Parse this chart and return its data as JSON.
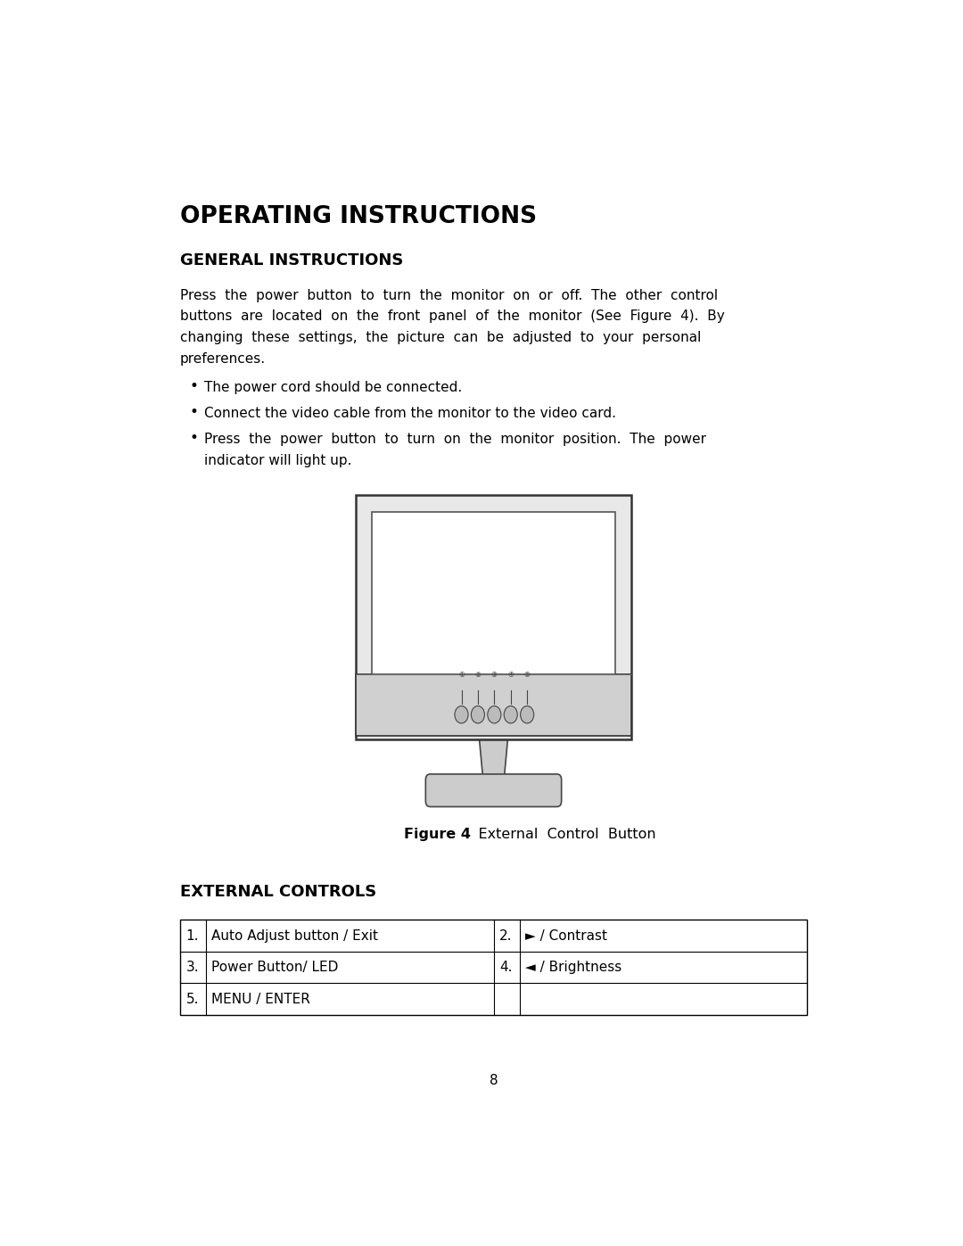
{
  "bg_color": "#ffffff",
  "page_width": 10.8,
  "page_height": 13.97,
  "title": "OPERATING INSTRUCTIONS",
  "section1_title": "GENERAL INSTRUCTIONS",
  "figure_caption_bold": "Figure 4",
  "figure_caption_normal": "    External  Control  Button",
  "section2_title": "EXTERNAL CONTROLS",
  "table_rows": [
    [
      "1.",
      "Auto Adjust button / Exit",
      "2.",
      "► / Contrast"
    ],
    [
      "3.",
      "Power Button/ LED",
      "4.",
      "◄ / Brightness"
    ],
    [
      "5.",
      "MENU / ENTER",
      "",
      ""
    ]
  ],
  "page_num": "8",
  "text_color": "#000000",
  "line_color": "#000000",
  "para_lines": [
    "Press  the  power  button  to  turn  the  monitor  on  or  off.  The  other  control",
    "buttons  are  located  on  the  front  panel  of  the  monitor  (See  Figure  4).  By",
    "changing  these  settings,  the  picture  can  be  adjusted  to  your  personal",
    "preferences."
  ],
  "bullet1": "The power cord should be connected.",
  "bullet2": "Connect the video cable from the monitor to the video card.",
  "bullet3a": "Press  the  power  button  to  turn  on  the  monitor  position.  The  power",
  "bullet3b": "indicator will light up."
}
